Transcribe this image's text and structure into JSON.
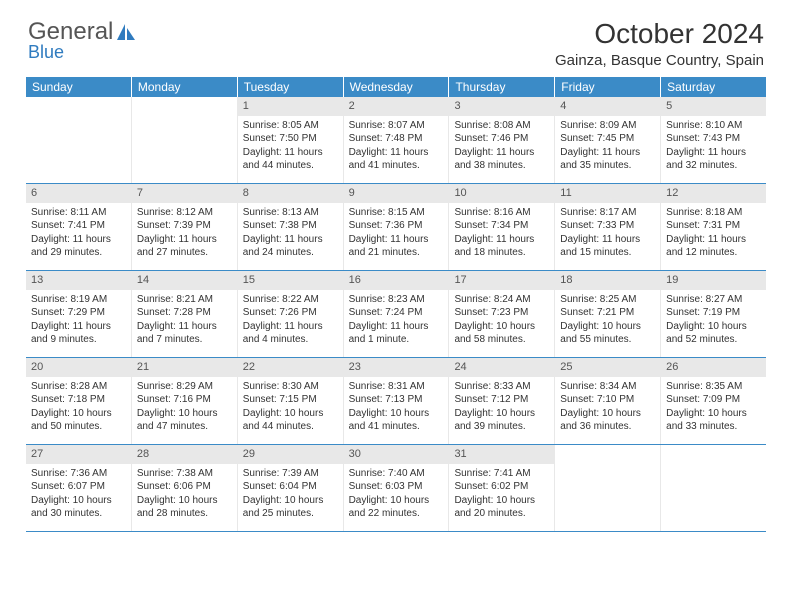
{
  "logo": {
    "text1": "General",
    "text2": "Blue",
    "color1": "#6a6a6a",
    "color2": "#2f7bbf"
  },
  "title": "October 2024",
  "location": "Gainza, Basque Country, Spain",
  "colors": {
    "header_bg": "#3b8bc7",
    "header_text": "#ffffff",
    "daynum_bg": "#e8e8e8",
    "border": "#3b8bc7"
  },
  "day_names": [
    "Sunday",
    "Monday",
    "Tuesday",
    "Wednesday",
    "Thursday",
    "Friday",
    "Saturday"
  ],
  "weeks": [
    [
      null,
      null,
      {
        "n": "1",
        "sr": "8:05 AM",
        "ss": "7:50 PM",
        "dl": "11 hours and 44 minutes."
      },
      {
        "n": "2",
        "sr": "8:07 AM",
        "ss": "7:48 PM",
        "dl": "11 hours and 41 minutes."
      },
      {
        "n": "3",
        "sr": "8:08 AM",
        "ss": "7:46 PM",
        "dl": "11 hours and 38 minutes."
      },
      {
        "n": "4",
        "sr": "8:09 AM",
        "ss": "7:45 PM",
        "dl": "11 hours and 35 minutes."
      },
      {
        "n": "5",
        "sr": "8:10 AM",
        "ss": "7:43 PM",
        "dl": "11 hours and 32 minutes."
      }
    ],
    [
      {
        "n": "6",
        "sr": "8:11 AM",
        "ss": "7:41 PM",
        "dl": "11 hours and 29 minutes."
      },
      {
        "n": "7",
        "sr": "8:12 AM",
        "ss": "7:39 PM",
        "dl": "11 hours and 27 minutes."
      },
      {
        "n": "8",
        "sr": "8:13 AM",
        "ss": "7:38 PM",
        "dl": "11 hours and 24 minutes."
      },
      {
        "n": "9",
        "sr": "8:15 AM",
        "ss": "7:36 PM",
        "dl": "11 hours and 21 minutes."
      },
      {
        "n": "10",
        "sr": "8:16 AM",
        "ss": "7:34 PM",
        "dl": "11 hours and 18 minutes."
      },
      {
        "n": "11",
        "sr": "8:17 AM",
        "ss": "7:33 PM",
        "dl": "11 hours and 15 minutes."
      },
      {
        "n": "12",
        "sr": "8:18 AM",
        "ss": "7:31 PM",
        "dl": "11 hours and 12 minutes."
      }
    ],
    [
      {
        "n": "13",
        "sr": "8:19 AM",
        "ss": "7:29 PM",
        "dl": "11 hours and 9 minutes."
      },
      {
        "n": "14",
        "sr": "8:21 AM",
        "ss": "7:28 PM",
        "dl": "11 hours and 7 minutes."
      },
      {
        "n": "15",
        "sr": "8:22 AM",
        "ss": "7:26 PM",
        "dl": "11 hours and 4 minutes."
      },
      {
        "n": "16",
        "sr": "8:23 AM",
        "ss": "7:24 PM",
        "dl": "11 hours and 1 minute."
      },
      {
        "n": "17",
        "sr": "8:24 AM",
        "ss": "7:23 PM",
        "dl": "10 hours and 58 minutes."
      },
      {
        "n": "18",
        "sr": "8:25 AM",
        "ss": "7:21 PM",
        "dl": "10 hours and 55 minutes."
      },
      {
        "n": "19",
        "sr": "8:27 AM",
        "ss": "7:19 PM",
        "dl": "10 hours and 52 minutes."
      }
    ],
    [
      {
        "n": "20",
        "sr": "8:28 AM",
        "ss": "7:18 PM",
        "dl": "10 hours and 50 minutes."
      },
      {
        "n": "21",
        "sr": "8:29 AM",
        "ss": "7:16 PM",
        "dl": "10 hours and 47 minutes."
      },
      {
        "n": "22",
        "sr": "8:30 AM",
        "ss": "7:15 PM",
        "dl": "10 hours and 44 minutes."
      },
      {
        "n": "23",
        "sr": "8:31 AM",
        "ss": "7:13 PM",
        "dl": "10 hours and 41 minutes."
      },
      {
        "n": "24",
        "sr": "8:33 AM",
        "ss": "7:12 PM",
        "dl": "10 hours and 39 minutes."
      },
      {
        "n": "25",
        "sr": "8:34 AM",
        "ss": "7:10 PM",
        "dl": "10 hours and 36 minutes."
      },
      {
        "n": "26",
        "sr": "8:35 AM",
        "ss": "7:09 PM",
        "dl": "10 hours and 33 minutes."
      }
    ],
    [
      {
        "n": "27",
        "sr": "7:36 AM",
        "ss": "6:07 PM",
        "dl": "10 hours and 30 minutes."
      },
      {
        "n": "28",
        "sr": "7:38 AM",
        "ss": "6:06 PM",
        "dl": "10 hours and 28 minutes."
      },
      {
        "n": "29",
        "sr": "7:39 AM",
        "ss": "6:04 PM",
        "dl": "10 hours and 25 minutes."
      },
      {
        "n": "30",
        "sr": "7:40 AM",
        "ss": "6:03 PM",
        "dl": "10 hours and 22 minutes."
      },
      {
        "n": "31",
        "sr": "7:41 AM",
        "ss": "6:02 PM",
        "dl": "10 hours and 20 minutes."
      },
      null,
      null
    ]
  ],
  "labels": {
    "sunrise": "Sunrise:",
    "sunset": "Sunset:",
    "daylight": "Daylight:"
  }
}
